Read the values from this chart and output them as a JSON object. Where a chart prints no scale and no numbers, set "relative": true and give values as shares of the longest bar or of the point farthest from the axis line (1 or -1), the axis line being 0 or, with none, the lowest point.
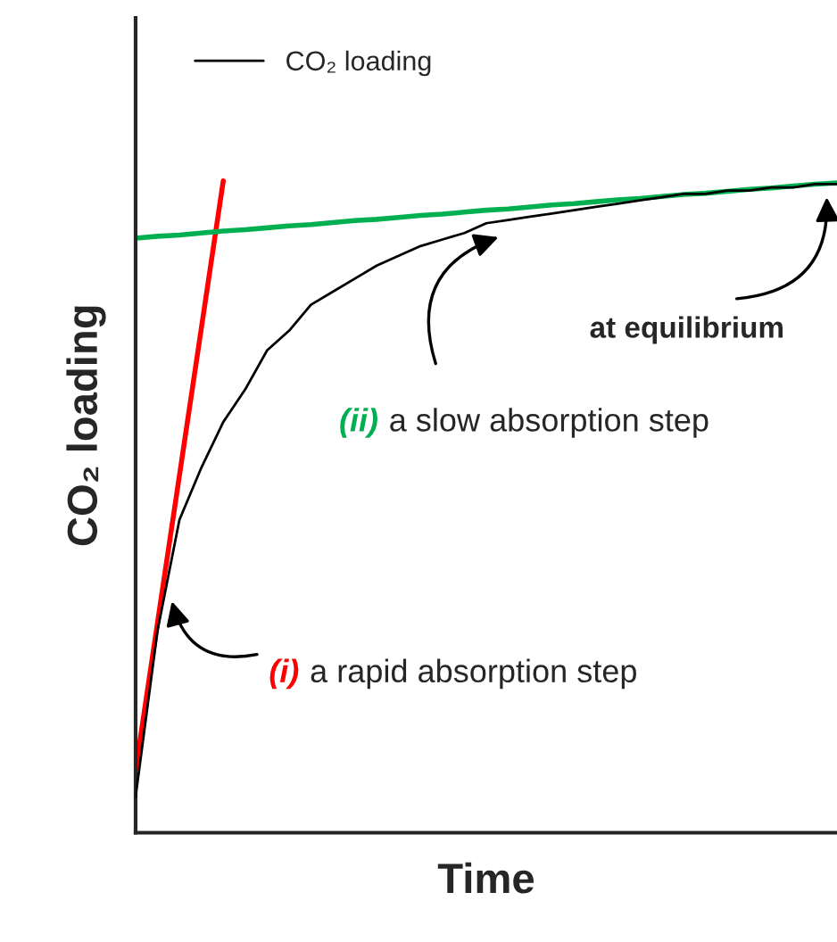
{
  "chart_data": {
    "type": "line",
    "relative": true,
    "xlabel": "Time",
    "ylabel": "CO₂ loading",
    "categories": [
      null,
      null,
      null,
      null,
      null,
      null,
      null,
      null,
      null,
      null,
      null,
      null,
      null,
      null,
      null,
      null,
      null,
      null,
      null,
      null,
      null,
      null,
      null,
      null,
      null,
      null,
      null,
      null,
      null,
      null,
      null,
      null,
      null
    ],
    "series": [
      {
        "name": "CO₂ loading",
        "color": "#000000",
        "values": [
          0.055,
          0.31,
          0.48,
          0.56,
          0.63,
          0.68,
          0.74,
          0.77,
          0.81,
          0.83,
          0.85,
          0.87,
          0.885,
          0.9,
          0.91,
          0.92,
          0.935,
          0.94,
          0.945,
          0.95,
          0.955,
          0.96,
          0.965,
          0.97,
          0.975,
          0.98,
          0.98,
          0.985,
          0.985,
          0.99,
          0.99,
          0.995,
          0.995
        ]
      },
      {
        "color": "#ff0000",
        "values": [
          0.096,
          0.322,
          0.548,
          0.774,
          1.0,
          null,
          null,
          null,
          null,
          null,
          null,
          null,
          null,
          null,
          null,
          null,
          null,
          null,
          null,
          null,
          null,
          null,
          null,
          null,
          null,
          null,
          null,
          null,
          null,
          null,
          null,
          null,
          null
        ]
      },
      {
        "color": "#00b050",
        "values": [
          0.912,
          0.915,
          0.917,
          0.92,
          0.923,
          0.925,
          0.928,
          0.931,
          0.933,
          0.936,
          0.939,
          0.941,
          0.944,
          0.947,
          0.949,
          0.952,
          0.955,
          0.957,
          0.96,
          0.963,
          0.965,
          0.968,
          0.971,
          0.973,
          0.976,
          0.979,
          0.981,
          0.984,
          0.987,
          0.989,
          0.992,
          0.995,
          0.997
        ]
      }
    ],
    "annotations": [
      "(i) a rapid absorption step",
      "(ii) a slow absorption step",
      "at equilibrium"
    ],
    "legend": "top left",
    "marker": "none",
    "line_style": "solid"
  }
}
